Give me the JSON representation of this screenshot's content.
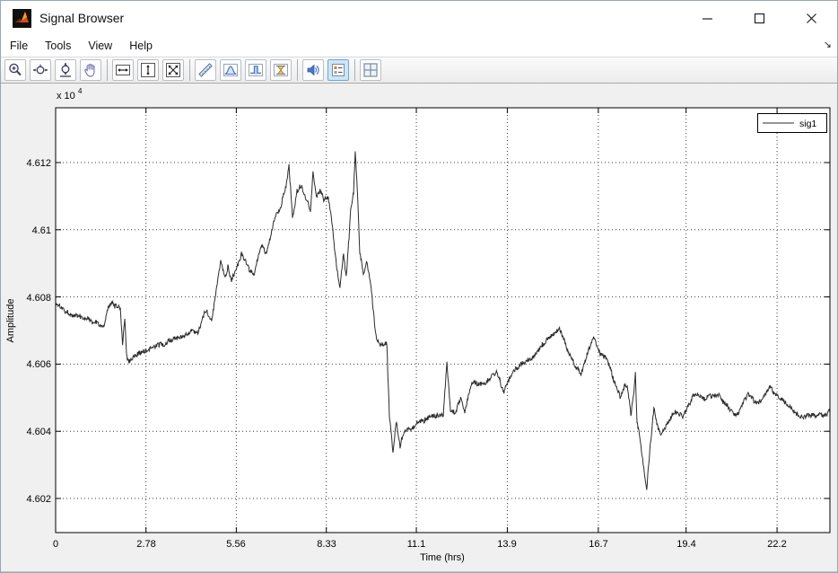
{
  "window": {
    "title": "Signal Browser",
    "controls": [
      "minimize",
      "maximize",
      "close"
    ],
    "dock_arrow_glyph": "↘"
  },
  "menu": {
    "items": [
      "File",
      "Tools",
      "View",
      "Help"
    ]
  },
  "toolbar": {
    "icons": [
      "zoom-in",
      "zoom-x",
      "zoom-y",
      "pan",
      "scale-x-axis",
      "scale-y-axis",
      "scale-xy-axes",
      "cursor-measurements",
      "signal-statistics",
      "bilevel-measurements",
      "peak-finder",
      "play-audio",
      "legend-toggle",
      "layout-grid"
    ],
    "active_button": "legend-toggle",
    "active_bg": "#cde6f7",
    "active_border": "#6da8d8"
  },
  "figure": {
    "background": "#f0f0f0",
    "plot_background": "#ffffff"
  },
  "chart_data": {
    "type": "line",
    "title": "",
    "xlabel": "Time (hrs)",
    "ylabel": "Amplitude",
    "y_scale_label": "x 10",
    "y_scale_exponent": "4",
    "xlim": [
      0,
      23.83
    ],
    "ylim": [
      4.601,
      4.6136
    ],
    "units_note": "y values in units of 10^4",
    "grid": true,
    "grid_style": "dotted",
    "xticks": [
      0,
      2.78,
      5.56,
      8.33,
      11.1,
      13.9,
      16.7,
      19.4,
      22.2
    ],
    "xtick_labels": [
      "0",
      "2.78",
      "5.56",
      "8.33",
      "11.1",
      "13.9",
      "16.7",
      "19.4",
      "22.2"
    ],
    "yticks": [
      4.602,
      4.604,
      4.606,
      4.608,
      4.61,
      4.612
    ],
    "ytick_labels": [
      "4.602",
      "4.604",
      "4.606",
      "4.608",
      "4.61",
      "4.612"
    ],
    "legend": {
      "position": "top-right",
      "entries": [
        "sig1"
      ]
    },
    "line_color": "#2b2b2b",
    "noise_amplitude": 7e-05,
    "series": [
      {
        "name": "sig1",
        "points": [
          [
            0.0,
            4.6078
          ],
          [
            0.52,
            4.6075
          ],
          [
            1.08,
            4.6073
          ],
          [
            1.49,
            4.6071
          ],
          [
            1.6,
            4.6076
          ],
          [
            1.71,
            4.6078
          ],
          [
            1.82,
            4.6077
          ],
          [
            1.99,
            4.6077
          ],
          [
            2.06,
            4.6066
          ],
          [
            2.13,
            4.6074
          ],
          [
            2.18,
            4.6063
          ],
          [
            2.24,
            4.6061
          ],
          [
            2.46,
            4.6063
          ],
          [
            2.73,
            4.6064
          ],
          [
            3.29,
            4.6066
          ],
          [
            3.84,
            4.6068
          ],
          [
            4.39,
            4.607
          ],
          [
            4.61,
            4.6076
          ],
          [
            4.8,
            4.6073
          ],
          [
            4.94,
            4.6082
          ],
          [
            5.08,
            4.609
          ],
          [
            5.22,
            4.6085
          ],
          [
            5.3,
            4.6089
          ],
          [
            5.41,
            4.6085
          ],
          [
            5.55,
            4.6088
          ],
          [
            5.72,
            4.6092
          ],
          [
            5.91,
            4.6089
          ],
          [
            6.1,
            4.6087
          ],
          [
            6.32,
            4.6095
          ],
          [
            6.49,
            4.6093
          ],
          [
            6.74,
            4.6103
          ],
          [
            6.93,
            4.6107
          ],
          [
            7.09,
            4.6113
          ],
          [
            7.18,
            4.6119
          ],
          [
            7.29,
            4.6103
          ],
          [
            7.43,
            4.6112
          ],
          [
            7.56,
            4.6114
          ],
          [
            7.7,
            4.611
          ],
          [
            7.84,
            4.6106
          ],
          [
            7.92,
            4.6117
          ],
          [
            8.03,
            4.611
          ],
          [
            8.14,
            4.6112
          ],
          [
            8.25,
            4.6109
          ],
          [
            8.39,
            4.611
          ],
          [
            8.53,
            4.61
          ],
          [
            8.64,
            4.609
          ],
          [
            8.75,
            4.6083
          ],
          [
            8.86,
            4.6092
          ],
          [
            8.94,
            4.6086
          ],
          [
            9.03,
            4.6098
          ],
          [
            9.08,
            4.6107
          ],
          [
            9.17,
            4.6111
          ],
          [
            9.22,
            4.6123
          ],
          [
            9.3,
            4.6108
          ],
          [
            9.36,
            4.6093
          ],
          [
            9.47,
            4.6087
          ],
          [
            9.58,
            4.609
          ],
          [
            9.69,
            4.6084
          ],
          [
            9.86,
            4.6068
          ],
          [
            10.02,
            4.6066
          ],
          [
            10.19,
            4.6066
          ],
          [
            10.27,
            4.6045
          ],
          [
            10.38,
            4.6034
          ],
          [
            10.49,
            4.6043
          ],
          [
            10.6,
            4.6036
          ],
          [
            10.74,
            4.6041
          ],
          [
            10.93,
            4.6041
          ],
          [
            11.15,
            4.6043
          ],
          [
            11.57,
            4.6045
          ],
          [
            11.93,
            4.6045
          ],
          [
            12.04,
            4.6061
          ],
          [
            12.15,
            4.6046
          ],
          [
            12.31,
            4.6046
          ],
          [
            12.45,
            4.605
          ],
          [
            12.59,
            4.6046
          ],
          [
            12.81,
            4.6054
          ],
          [
            13.22,
            4.6054
          ],
          [
            13.58,
            4.6058
          ],
          [
            13.78,
            4.6052
          ],
          [
            14.05,
            4.6058
          ],
          [
            14.33,
            4.606
          ],
          [
            14.69,
            4.6062
          ],
          [
            15.02,
            4.6066
          ],
          [
            15.49,
            4.6071
          ],
          [
            15.85,
            4.6062
          ],
          [
            16.18,
            4.6057
          ],
          [
            16.4,
            4.6064
          ],
          [
            16.54,
            4.6068
          ],
          [
            16.76,
            4.6063
          ],
          [
            16.98,
            4.6061
          ],
          [
            17.2,
            4.6055
          ],
          [
            17.37,
            4.605
          ],
          [
            17.5,
            4.6053
          ],
          [
            17.59,
            4.6054
          ],
          [
            17.7,
            4.6045
          ],
          [
            17.78,
            4.605
          ],
          [
            17.84,
            4.6057
          ],
          [
            17.89,
            4.6042
          ],
          [
            17.95,
            4.604
          ],
          [
            18.08,
            4.603
          ],
          [
            18.19,
            4.6023
          ],
          [
            18.3,
            4.6036
          ],
          [
            18.41,
            4.6047
          ],
          [
            18.53,
            4.6041
          ],
          [
            18.64,
            4.6039
          ],
          [
            18.8,
            4.6042
          ],
          [
            19.02,
            4.6046
          ],
          [
            19.3,
            4.6045
          ],
          [
            19.63,
            4.6051
          ],
          [
            19.99,
            4.605
          ],
          [
            20.4,
            4.6051
          ],
          [
            20.73,
            4.6047
          ],
          [
            20.95,
            4.6045
          ],
          [
            21.31,
            4.6051
          ],
          [
            21.59,
            4.6048
          ],
          [
            21.98,
            4.6053
          ],
          [
            22.28,
            4.605
          ],
          [
            22.61,
            4.6047
          ],
          [
            22.97,
            4.6044
          ],
          [
            23.3,
            4.6045
          ],
          [
            23.66,
            4.6045
          ],
          [
            23.83,
            4.6046
          ]
        ]
      }
    ]
  }
}
